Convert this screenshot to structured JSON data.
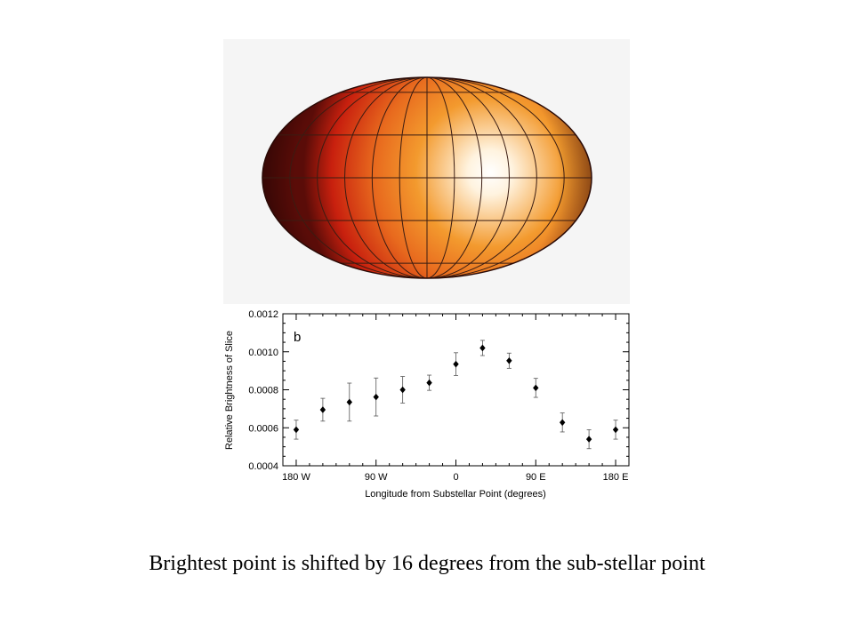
{
  "caption": "Brightest point is shifted by 16 degrees from the sub-stellar point",
  "colors": {
    "hot": "#ffffff",
    "warm": "#f39a2e",
    "cool": "#c8200e",
    "edge": "#5a0c08",
    "grid": "#3a1c12"
  },
  "chart_data": {
    "type": "scatter",
    "panel_label": "b",
    "xlabel": "Longitude from Substellar Point (degrees)",
    "ylabel": "Relative Brightness of Slice",
    "xlim": [
      -195,
      195
    ],
    "ylim": [
      0.0004,
      0.0012
    ],
    "x_ticks": [
      -180,
      -90,
      0,
      90,
      180
    ],
    "x_tick_labels": [
      "180 W",
      "90 W",
      "0",
      "90 E",
      "180 E"
    ],
    "y_ticks": [
      0.0004,
      0.0006,
      0.0008,
      0.001,
      0.0012
    ],
    "y_tick_labels": [
      "0.0004",
      "0.0006",
      "0.0008",
      "0.0010",
      "0.0012"
    ],
    "grid": false,
    "marker": "diamond",
    "points": [
      {
        "x": -180,
        "y": 0.00059,
        "err": 5e-05
      },
      {
        "x": -150,
        "y": 0.000695,
        "err": 6e-05
      },
      {
        "x": -120,
        "y": 0.000735,
        "err": 0.0001
      },
      {
        "x": -90,
        "y": 0.000762,
        "err": 0.0001
      },
      {
        "x": -60,
        "y": 0.0008,
        "err": 7e-05
      },
      {
        "x": -30,
        "y": 0.000837,
        "err": 4e-05
      },
      {
        "x": 0,
        "y": 0.000935,
        "err": 6e-05
      },
      {
        "x": 30,
        "y": 0.00102,
        "err": 4e-05
      },
      {
        "x": 60,
        "y": 0.000953,
        "err": 4e-05
      },
      {
        "x": 90,
        "y": 0.00081,
        "err": 5e-05
      },
      {
        "x": 120,
        "y": 0.000628,
        "err": 5e-05
      },
      {
        "x": 150,
        "y": 0.00054,
        "err": 5e-05
      },
      {
        "x": 180,
        "y": 0.00059,
        "err": 5e-05
      }
    ]
  }
}
